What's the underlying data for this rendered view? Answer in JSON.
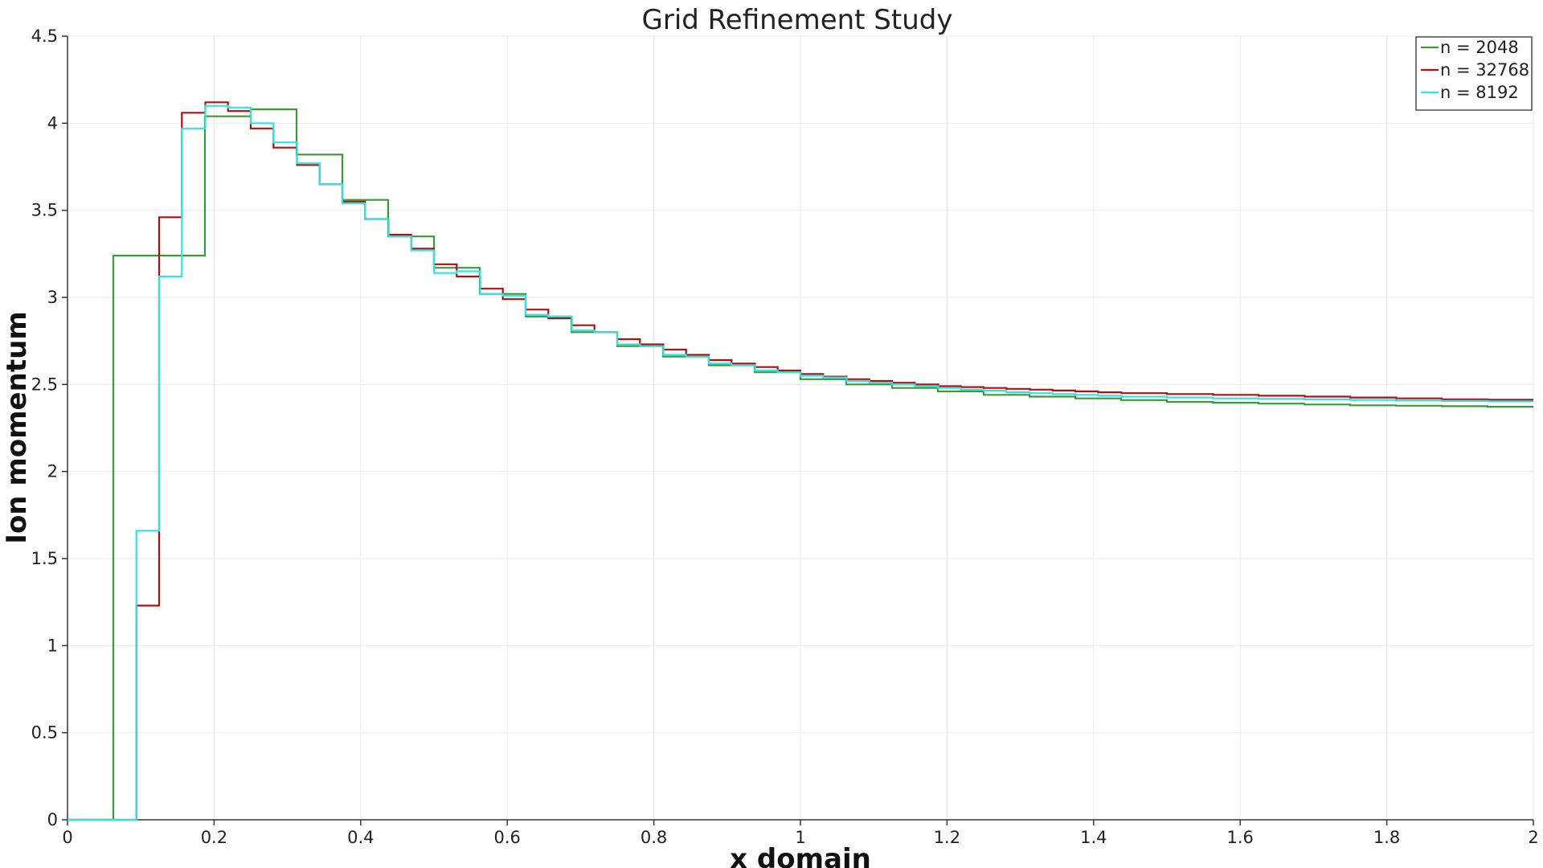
{
  "chart_data": {
    "type": "line",
    "title": "Grid Refinement Study",
    "xlabel": "x domain",
    "ylabel": "Ion momentum",
    "xlim": [
      0,
      2
    ],
    "ylim": [
      0,
      4.5
    ],
    "xticks": [
      0,
      0.2,
      0.4,
      0.6,
      0.8,
      1,
      1.2,
      1.4,
      1.6,
      1.8,
      2
    ],
    "xtick_labels": [
      "0",
      "0.2",
      "0.4",
      "0.6",
      "0.8",
      "1",
      "1.2",
      "1.4",
      "1.6",
      "1.8",
      "2"
    ],
    "yticks": [
      0,
      0.5,
      1,
      1.5,
      2,
      2.5,
      3,
      3.5,
      4,
      4.5
    ],
    "ytick_labels": [
      "0",
      "0.5",
      "1",
      "1.5",
      "2",
      "2.5",
      "3",
      "3.5",
      "4",
      "4.5"
    ],
    "grid": true,
    "legend_position": "top-right",
    "step_plot": true,
    "series": [
      {
        "name": "n = 2048",
        "color": "#3a9a3a",
        "x": [
          0,
          0.0625,
          0.0625,
          0.1875,
          0.1875,
          0.25,
          0.25,
          0.3125,
          0.3125,
          0.375,
          0.375,
          0.4375,
          0.4375,
          0.5,
          0.5,
          0.5625,
          0.5625,
          0.625,
          0.625,
          0.6875,
          0.6875,
          0.75,
          0.75,
          0.8125,
          0.8125,
          0.875,
          0.875,
          0.9375,
          0.9375,
          1.0,
          1.0,
          1.0625,
          1.0625,
          1.125,
          1.125,
          1.1875,
          1.1875,
          1.25,
          1.25,
          1.3125,
          1.3125,
          1.375,
          1.375,
          1.4375,
          1.4375,
          1.5,
          1.5,
          1.5625,
          1.5625,
          1.625,
          1.625,
          1.6875,
          1.6875,
          1.75,
          1.75,
          1.8125,
          1.8125,
          1.875,
          1.875,
          1.9375,
          1.9375,
          2.0
        ],
        "y": [
          0,
          0,
          3.24,
          3.24,
          4.04,
          4.04,
          4.08,
          4.08,
          3.82,
          3.82,
          3.56,
          3.56,
          3.35,
          3.35,
          3.17,
          3.17,
          3.02,
          3.02,
          2.89,
          2.89,
          2.8,
          2.8,
          2.72,
          2.72,
          2.66,
          2.66,
          2.61,
          2.61,
          2.57,
          2.57,
          2.53,
          2.53,
          2.5,
          2.5,
          2.48,
          2.48,
          2.46,
          2.46,
          2.44,
          2.44,
          2.43,
          2.43,
          2.42,
          2.42,
          2.41,
          2.41,
          2.4,
          2.4,
          2.395,
          2.395,
          2.39,
          2.39,
          2.385,
          2.385,
          2.38,
          2.38,
          2.378,
          2.378,
          2.375,
          2.375,
          2.372,
          2.372
        ]
      },
      {
        "name": "n = 32768",
        "color": "#b01010",
        "x": [
          0,
          0.094,
          0.094,
          0.125,
          0.125,
          0.156,
          0.156,
          0.188,
          0.188,
          0.219,
          0.219,
          0.25,
          0.25,
          0.281,
          0.281,
          0.313,
          0.313,
          0.344,
          0.344,
          0.375,
          0.375,
          0.406,
          0.406,
          0.438,
          0.438,
          0.469,
          0.469,
          0.5,
          0.5,
          0.531,
          0.531,
          0.563,
          0.563,
          0.594,
          0.594,
          0.625,
          0.625,
          0.656,
          0.656,
          0.688,
          0.688,
          0.719,
          0.719,
          0.75,
          0.75,
          0.781,
          0.781,
          0.813,
          0.813,
          0.844,
          0.844,
          0.875,
          0.875,
          0.906,
          0.906,
          0.938,
          0.938,
          0.969,
          0.969,
          1.0,
          1.0,
          1.031,
          1.031,
          1.063,
          1.063,
          1.094,
          1.094,
          1.125,
          1.125,
          1.156,
          1.156,
          1.188,
          1.188,
          1.219,
          1.219,
          1.25,
          1.25,
          1.281,
          1.281,
          1.313,
          1.313,
          1.344,
          1.344,
          1.375,
          1.375,
          1.406,
          1.406,
          1.438,
          1.438,
          1.5,
          1.5,
          1.563,
          1.563,
          1.625,
          1.625,
          1.688,
          1.688,
          1.75,
          1.75,
          1.813,
          1.813,
          1.875,
          1.875,
          1.938,
          1.938,
          2.0
        ],
        "y": [
          0,
          0,
          1.23,
          1.23,
          3.46,
          3.46,
          4.06,
          4.06,
          4.12,
          4.12,
          4.07,
          4.07,
          3.97,
          3.97,
          3.86,
          3.86,
          3.76,
          3.76,
          3.65,
          3.65,
          3.55,
          3.55,
          3.45,
          3.45,
          3.36,
          3.36,
          3.28,
          3.28,
          3.19,
          3.19,
          3.12,
          3.12,
          3.05,
          3.05,
          2.99,
          2.99,
          2.93,
          2.93,
          2.88,
          2.88,
          2.84,
          2.84,
          2.8,
          2.8,
          2.76,
          2.76,
          2.73,
          2.73,
          2.7,
          2.7,
          2.67,
          2.67,
          2.64,
          2.64,
          2.62,
          2.62,
          2.6,
          2.6,
          2.58,
          2.58,
          2.56,
          2.56,
          2.545,
          2.545,
          2.53,
          2.53,
          2.52,
          2.52,
          2.51,
          2.51,
          2.5,
          2.5,
          2.49,
          2.49,
          2.485,
          2.485,
          2.48,
          2.48,
          2.475,
          2.475,
          2.47,
          2.47,
          2.465,
          2.465,
          2.46,
          2.46,
          2.455,
          2.455,
          2.45,
          2.45,
          2.445,
          2.445,
          2.44,
          2.44,
          2.435,
          2.435,
          2.43,
          2.43,
          2.425,
          2.425,
          2.42,
          2.42,
          2.415,
          2.415,
          2.412,
          2.412
        ]
      },
      {
        "name": "n = 8192",
        "color": "#33e3e3",
        "x": [
          0,
          0.094,
          0.094,
          0.125,
          0.125,
          0.156,
          0.156,
          0.188,
          0.188,
          0.219,
          0.219,
          0.25,
          0.25,
          0.281,
          0.281,
          0.313,
          0.313,
          0.344,
          0.344,
          0.375,
          0.375,
          0.406,
          0.406,
          0.438,
          0.438,
          0.469,
          0.469,
          0.5,
          0.5,
          0.531,
          0.531,
          0.563,
          0.563,
          0.594,
          0.594,
          0.625,
          0.625,
          0.656,
          0.656,
          0.688,
          0.688,
          0.719,
          0.719,
          0.75,
          0.75,
          0.781,
          0.781,
          0.813,
          0.813,
          0.844,
          0.844,
          0.875,
          0.875,
          0.906,
          0.906,
          0.938,
          0.938,
          0.969,
          0.969,
          1.0,
          1.0,
          1.031,
          1.031,
          1.063,
          1.063,
          1.094,
          1.094,
          1.125,
          1.125,
          1.156,
          1.156,
          1.188,
          1.188,
          1.219,
          1.219,
          1.25,
          1.25,
          1.281,
          1.281,
          1.313,
          1.313,
          1.344,
          1.344,
          1.375,
          1.375,
          1.406,
          1.406,
          1.438,
          1.438,
          1.5,
          1.5,
          1.563,
          1.563,
          1.625,
          1.625,
          1.688,
          1.688,
          1.75,
          1.75,
          1.813,
          1.813,
          1.875,
          1.875,
          1.938,
          1.938,
          2.0
        ],
        "y": [
          0,
          0,
          1.66,
          1.66,
          3.12,
          3.12,
          3.97,
          3.97,
          4.1,
          4.1,
          4.09,
          4.09,
          4.0,
          4.0,
          3.89,
          3.89,
          3.77,
          3.77,
          3.65,
          3.65,
          3.54,
          3.54,
          3.45,
          3.45,
          3.35,
          3.35,
          3.27,
          3.27,
          3.14,
          3.14,
          3.15,
          3.15,
          3.02,
          3.02,
          3.01,
          3.01,
          2.9,
          2.9,
          2.89,
          2.89,
          2.81,
          2.81,
          2.8,
          2.8,
          2.73,
          2.73,
          2.72,
          2.72,
          2.67,
          2.67,
          2.66,
          2.66,
          2.62,
          2.62,
          2.61,
          2.61,
          2.58,
          2.58,
          2.57,
          2.57,
          2.55,
          2.55,
          2.54,
          2.54,
          2.52,
          2.52,
          2.51,
          2.51,
          2.5,
          2.5,
          2.49,
          2.49,
          2.48,
          2.48,
          2.47,
          2.47,
          2.465,
          2.465,
          2.455,
          2.455,
          2.45,
          2.45,
          2.445,
          2.445,
          2.44,
          2.44,
          2.435,
          2.435,
          2.43,
          2.43,
          2.425,
          2.425,
          2.42,
          2.42,
          2.417,
          2.417,
          2.414,
          2.414,
          2.411,
          2.411,
          2.408,
          2.408,
          2.405,
          2.405,
          2.403,
          2.403
        ]
      }
    ]
  }
}
